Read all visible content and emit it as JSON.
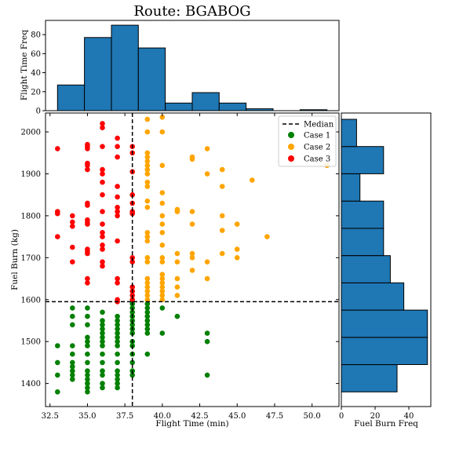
{
  "chart_data": {
    "title": "Route: BGABOG",
    "colors": {
      "hist": "#1f77b4",
      "case1": "#008000",
      "case2": "#ffa500",
      "case3": "#ff0000",
      "median": "#000000"
    },
    "main": {
      "type": "scatter",
      "xlabel": "Flight Time (min)",
      "ylabel": "Fuel Burn (kg)",
      "xlim": [
        32.2,
        51.8
      ],
      "ylim": [
        1345,
        2045
      ],
      "xticks": [
        32.5,
        35.0,
        37.5,
        40.0,
        42.5,
        45.0,
        47.5,
        50.0
      ],
      "yticks": [
        1400,
        1500,
        1600,
        1700,
        1800,
        1900,
        2000
      ],
      "median_x": 38,
      "median_y": 1595,
      "legend_position": "top-right",
      "legend": [
        "Median",
        "Case 1",
        "Case 2",
        "Case 3"
      ],
      "series": [
        {
          "name": "Case 1",
          "points": [
            [
              33,
              1380
            ],
            [
              33,
              1420
            ],
            [
              33,
              1450
            ],
            [
              33,
              1490
            ],
            [
              34,
              1410
            ],
            [
              34,
              1420
            ],
            [
              34,
              1430
            ],
            [
              34,
              1440
            ],
            [
              34,
              1450
            ],
            [
              34,
              1470
            ],
            [
              34,
              1490
            ],
            [
              34,
              1540
            ],
            [
              34,
              1560
            ],
            [
              34,
              1580
            ],
            [
              35,
              1380
            ],
            [
              35,
              1390
            ],
            [
              35,
              1400
            ],
            [
              35,
              1410
            ],
            [
              35,
              1420
            ],
            [
              35,
              1430
            ],
            [
              35,
              1450
            ],
            [
              35,
              1470
            ],
            [
              35,
              1490
            ],
            [
              35,
              1500
            ],
            [
              35,
              1510
            ],
            [
              35,
              1540
            ],
            [
              35,
              1560
            ],
            [
              35,
              1580
            ],
            [
              36,
              1390
            ],
            [
              36,
              1400
            ],
            [
              36,
              1420
            ],
            [
              36,
              1430
            ],
            [
              36,
              1450
            ],
            [
              36,
              1470
            ],
            [
              36,
              1490
            ],
            [
              36,
              1500
            ],
            [
              36,
              1510
            ],
            [
              36,
              1520
            ],
            [
              36,
              1530
            ],
            [
              36,
              1540
            ],
            [
              36,
              1550
            ],
            [
              36,
              1570
            ],
            [
              37,
              1390
            ],
            [
              37,
              1400
            ],
            [
              37,
              1410
            ],
            [
              37,
              1420
            ],
            [
              37,
              1430
            ],
            [
              37,
              1450
            ],
            [
              37,
              1470
            ],
            [
              37,
              1490
            ],
            [
              37,
              1500
            ],
            [
              37,
              1510
            ],
            [
              37,
              1520
            ],
            [
              37,
              1530
            ],
            [
              37,
              1540
            ],
            [
              37,
              1550
            ],
            [
              37,
              1560
            ],
            [
              38,
              1420
            ],
            [
              38,
              1430
            ],
            [
              38,
              1450
            ],
            [
              38,
              1470
            ],
            [
              38,
              1490
            ],
            [
              38,
              1500
            ],
            [
              38,
              1520
            ],
            [
              38,
              1530
            ],
            [
              38,
              1540
            ],
            [
              38,
              1550
            ],
            [
              38,
              1560
            ],
            [
              38,
              1570
            ],
            [
              38,
              1580
            ],
            [
              38,
              1590
            ],
            [
              39,
              1470
            ],
            [
              39,
              1520
            ],
            [
              39,
              1530
            ],
            [
              39,
              1540
            ],
            [
              39,
              1550
            ],
            [
              39,
              1560
            ],
            [
              39,
              1570
            ],
            [
              39,
              1580
            ],
            [
              39,
              1590
            ],
            [
              40,
              1520
            ],
            [
              40,
              1580
            ],
            [
              41,
              1560
            ],
            [
              43,
              1420
            ],
            [
              43,
              1500
            ],
            [
              43,
              1520
            ]
          ]
        },
        {
          "name": "Case 2",
          "points": [
            [
              39,
              1600
            ],
            [
              39,
              1610
            ],
            [
              39,
              1620
            ],
            [
              39,
              1630
            ],
            [
              39,
              1640
            ],
            [
              39,
              1650
            ],
            [
              39,
              1690
            ],
            [
              39,
              1700
            ],
            [
              39,
              1740
            ],
            [
              39,
              1750
            ],
            [
              39,
              1760
            ],
            [
              39,
              1820
            ],
            [
              39,
              1835
            ],
            [
              39,
              1870
            ],
            [
              39,
              1880
            ],
            [
              39,
              1900
            ],
            [
              39,
              1910
            ],
            [
              39,
              1920
            ],
            [
              39,
              1930
            ],
            [
              39,
              1940
            ],
            [
              39,
              1950
            ],
            [
              39,
              2000
            ],
            [
              39,
              2030
            ],
            [
              40,
              1600
            ],
            [
              40,
              1610
            ],
            [
              40,
              1620
            ],
            [
              40,
              1630
            ],
            [
              40,
              1640
            ],
            [
              40,
              1650
            ],
            [
              40,
              1660
            ],
            [
              40,
              1690
            ],
            [
              40,
              1700
            ],
            [
              40,
              1730
            ],
            [
              40,
              1760
            ],
            [
              40,
              1780
            ],
            [
              40,
              1800
            ],
            [
              40,
              1830
            ],
            [
              40,
              1855
            ],
            [
              40,
              1920
            ],
            [
              40,
              2000
            ],
            [
              40,
              2035
            ],
            [
              41,
              1610
            ],
            [
              41,
              1630
            ],
            [
              41,
              1650
            ],
            [
              41,
              1690
            ],
            [
              41,
              1710
            ],
            [
              41,
              1810
            ],
            [
              41,
              1815
            ],
            [
              42,
              1670
            ],
            [
              42,
              1700
            ],
            [
              42,
              1710
            ],
            [
              42,
              1780
            ],
            [
              42,
              1810
            ],
            [
              42,
              1935
            ],
            [
              42,
              1940
            ],
            [
              43,
              1650
            ],
            [
              43,
              1690
            ],
            [
              43,
              1900
            ],
            [
              43,
              1960
            ],
            [
              44,
              1710
            ],
            [
              44,
              1765
            ],
            [
              44,
              1800
            ],
            [
              44,
              1870
            ],
            [
              44,
              1910
            ],
            [
              45,
              1700
            ],
            [
              45,
              1720
            ],
            [
              45,
              1780
            ],
            [
              46,
              1885
            ],
            [
              47,
              1750
            ],
            [
              51,
              1920
            ]
          ]
        },
        {
          "name": "Case 3",
          "points": [
            [
              33,
              1750
            ],
            [
              33,
              1805
            ],
            [
              33,
              1810
            ],
            [
              33,
              1960
            ],
            [
              34,
              1690
            ],
            [
              34,
              1725
            ],
            [
              34,
              1775
            ],
            [
              34,
              1785
            ],
            [
              34,
              1800
            ],
            [
              35,
              1640
            ],
            [
              35,
              1650
            ],
            [
              35,
              1710
            ],
            [
              35,
              1715
            ],
            [
              35,
              1720
            ],
            [
              35,
              1780
            ],
            [
              35,
              1785
            ],
            [
              35,
              1790
            ],
            [
              35,
              1825
            ],
            [
              35,
              1830
            ],
            [
              35,
              1910
            ],
            [
              35,
              1920
            ],
            [
              35,
              1925
            ],
            [
              35,
              1960
            ],
            [
              35,
              1965
            ],
            [
              35,
              1970
            ],
            [
              36,
              1680
            ],
            [
              36,
              1690
            ],
            [
              36,
              1720
            ],
            [
              36,
              1730
            ],
            [
              36,
              1750
            ],
            [
              36,
              1760
            ],
            [
              36,
              1780
            ],
            [
              36,
              1810
            ],
            [
              36,
              1850
            ],
            [
              36,
              1880
            ],
            [
              36,
              1900
            ],
            [
              36,
              1910
            ],
            [
              36,
              1965
            ],
            [
              36,
              2010
            ],
            [
              36,
              2020
            ],
            [
              37,
              1595
            ],
            [
              37,
              1600
            ],
            [
              37,
              1640
            ],
            [
              37,
              1650
            ],
            [
              37,
              1740
            ],
            [
              37,
              1800
            ],
            [
              37,
              1810
            ],
            [
              37,
              1820
            ],
            [
              37,
              1845
            ],
            [
              37,
              1870
            ],
            [
              37,
              1940
            ],
            [
              37,
              1965
            ],
            [
              37,
              1985
            ],
            [
              38,
              1600
            ],
            [
              38,
              1610
            ],
            [
              38,
              1620
            ],
            [
              38,
              1630
            ],
            [
              38,
              1690
            ],
            [
              38,
              1700
            ],
            [
              38,
              1805
            ],
            [
              38,
              1810
            ],
            [
              38,
              1830
            ],
            [
              38,
              1850
            ],
            [
              38,
              1905
            ],
            [
              38,
              1950
            ],
            [
              38,
              1965
            ]
          ]
        }
      ]
    },
    "top_hist": {
      "type": "bar",
      "ylabel": "Flight Time Freq",
      "ylim": [
        0,
        95
      ],
      "yticks": [
        0,
        20,
        40,
        60,
        80
      ],
      "bins": [
        {
          "x0": 33.0,
          "x1": 34.8,
          "count": 27
        },
        {
          "x0": 34.8,
          "x1": 36.6,
          "count": 77
        },
        {
          "x0": 36.6,
          "x1": 38.4,
          "count": 90
        },
        {
          "x0": 38.4,
          "x1": 40.2,
          "count": 66
        },
        {
          "x0": 40.2,
          "x1": 42.0,
          "count": 8
        },
        {
          "x0": 42.0,
          "x1": 43.8,
          "count": 19
        },
        {
          "x0": 43.8,
          "x1": 45.6,
          "count": 8
        },
        {
          "x0": 45.6,
          "x1": 47.4,
          "count": 2
        },
        {
          "x0": 47.4,
          "x1": 49.2,
          "count": 0
        },
        {
          "x0": 49.2,
          "x1": 51.0,
          "count": 1
        }
      ]
    },
    "right_hist": {
      "type": "bar",
      "xlabel": "Fuel Burn Freq",
      "xlim": [
        0,
        53
      ],
      "xticks": [
        0,
        20,
        40
      ],
      "bins": [
        {
          "y0": 1380,
          "y1": 1445,
          "count": 33
        },
        {
          "y0": 1445,
          "y1": 1510,
          "count": 51
        },
        {
          "y0": 1510,
          "y1": 1575,
          "count": 51
        },
        {
          "y0": 1575,
          "y1": 1640,
          "count": 37
        },
        {
          "y0": 1640,
          "y1": 1705,
          "count": 29
        },
        {
          "y0": 1705,
          "y1": 1770,
          "count": 25
        },
        {
          "y0": 1770,
          "y1": 1835,
          "count": 25
        },
        {
          "y0": 1835,
          "y1": 1900,
          "count": 11
        },
        {
          "y0": 1900,
          "y1": 1965,
          "count": 25
        },
        {
          "y0": 1965,
          "y1": 2030,
          "count": 9
        }
      ]
    }
  }
}
